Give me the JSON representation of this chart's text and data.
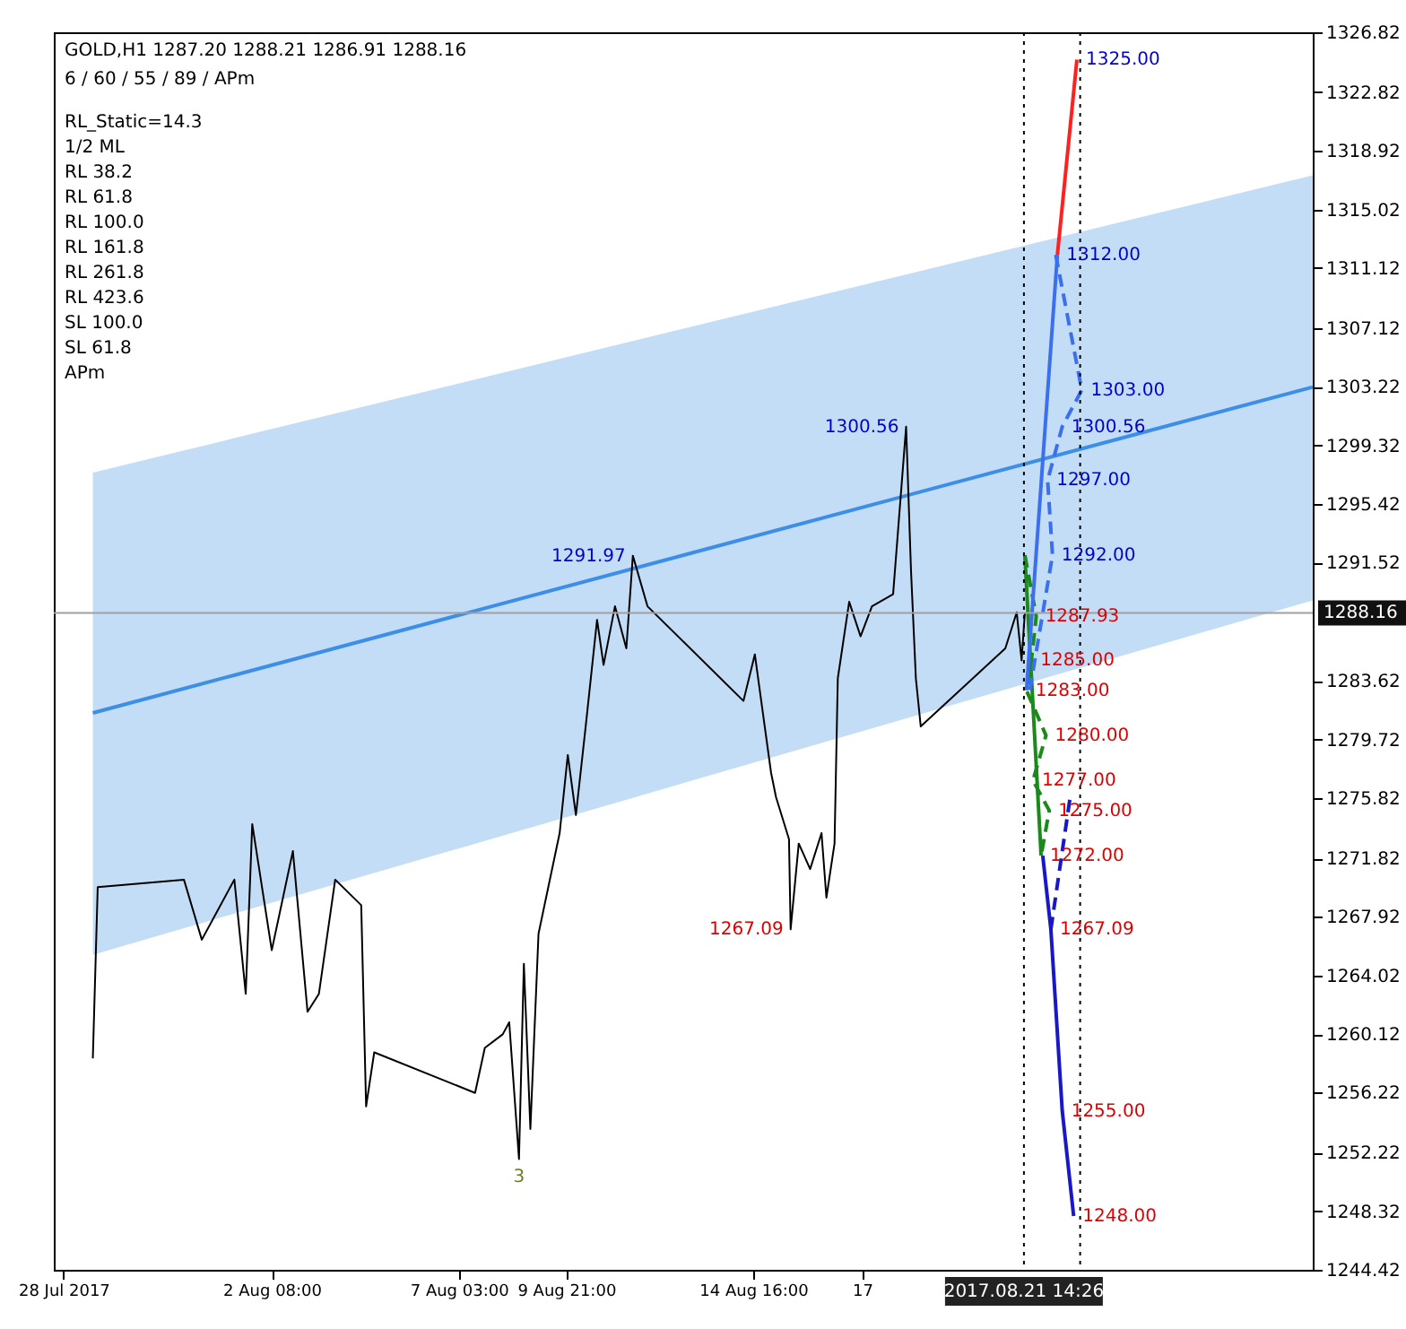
{
  "chart_data": {
    "type": "line",
    "title": "GOLD,H1  1287.20 1288.21 1286.91 1288.16",
    "subtitle": "6 / 60 / 55 / 89 / APm",
    "xlim": [
      "2017-07-27T18:00",
      "2017-08-29"
    ],
    "xticks": [
      {
        "value": "2017-07-28",
        "label": "28 Jul 2017"
      },
      {
        "value": "2017-08-02T08:00",
        "label": "2 Aug 08:00"
      },
      {
        "value": "2017-08-07T03:00",
        "label": "7 Aug 03:00"
      },
      {
        "value": "2017-08-09T21:00",
        "label": "9 Aug 21:00"
      },
      {
        "value": "2017-08-14T16:00",
        "label": "14 Aug 16:00"
      },
      {
        "value": "2017-08-17T11:00",
        "label": "17"
      }
    ],
    "ylim": [
      1244.42,
      1326.82
    ],
    "yticks": [
      1244.42,
      1248.32,
      1252.22,
      1256.22,
      1260.12,
      1264.02,
      1267.92,
      1271.82,
      1275.82,
      1279.72,
      1283.62,
      1291.52,
      1295.42,
      1299.32,
      1303.22,
      1307.12,
      1311.12,
      1315.02,
      1318.92,
      1322.82,
      1326.82
    ],
    "series": [
      {
        "color": "#3c8ee6",
        "x": [
          "2017-07-28T18:00",
          "2017-08-29"
        ],
        "values": [
          1281.5,
          1303.2
        ],
        "lower": [
          1265.4,
          1289.0
        ],
        "upper": [
          1297.5,
          1317.3
        ]
      },
      {
        "color": "#000000",
        "x": [
          "2017-07-28T18:00",
          "2017-07-28T21:00",
          "2017-07-31T02:00",
          "2017-07-31T13:00",
          "2017-08-01T09:00",
          "2017-08-01T16:00",
          "2017-08-01T20:00",
          "2017-08-02T08:00",
          "2017-08-02T21:00",
          "2017-08-03T06:00",
          "2017-08-03T13:00",
          "2017-08-03T23:00",
          "2017-08-04T15:00",
          "2017-08-04T18:00",
          "2017-08-04T23:00",
          "2017-08-07T13:00",
          "2017-08-07T19:00",
          "2017-08-08T06:00",
          "2017-08-08T10:00",
          "2017-08-08T16:00",
          "2017-08-08T19:00",
          "2017-08-08T23:00",
          "2017-08-09T04:00",
          "2017-08-09T17:00",
          "2017-08-09T22:00",
          "2017-08-10T03:00",
          "2017-08-10T09:00",
          "2017-08-10T16:00",
          "2017-08-10T20:00",
          "2017-08-11T03:00",
          "2017-08-11T10:00",
          "2017-08-11T14:00",
          "2017-08-11T23:00",
          "2017-08-14T10:00",
          "2017-08-14T17:00",
          "2017-08-15T03:00",
          "2017-08-15T06:00",
          "2017-08-15T14:00",
          "2017-08-15T15:00",
          "2017-08-15T20:00",
          "2017-08-16T03:00",
          "2017-08-16T10:00",
          "2017-08-16T13:00",
          "2017-08-16T18:00",
          "2017-08-16T20:00",
          "2017-08-17T03:00",
          "2017-08-17T10:00",
          "2017-08-17T17:00",
          "2017-08-18T06:00",
          "2017-08-18T14:00",
          "2017-08-18T17:00",
          "2017-08-18T20:00",
          "2017-08-18T23:00",
          "2017-08-21T03:00",
          "2017-08-21T10:00",
          "2017-08-21T13:00",
          "2017-08-21T15:00"
        ],
        "values": [
          1258.5,
          1269.9,
          1270.4,
          1266.4,
          1270.4,
          1262.8,
          1274.1,
          1265.7,
          1272.3,
          1261.6,
          1262.8,
          1270.4,
          1268.7,
          1255.3,
          1258.9,
          1256.2,
          1259.2,
          1260.1,
          1260.9,
          1251.8,
          1264.8,
          1253.8,
          1266.8,
          1273.5,
          1278.7,
          1274.7,
          1280.6,
          1287.7,
          1284.7,
          1288.6,
          1285.8,
          1291.97,
          1288.6,
          1282.3,
          1285.4,
          1277.5,
          1275.9,
          1273.1,
          1267.09,
          1272.8,
          1271.1,
          1273.5,
          1269.2,
          1272.8,
          1283.8,
          1288.9,
          1286.6,
          1288.6,
          1289.4,
          1300.56,
          1291.0,
          1283.8,
          1280.6,
          1285.8,
          1288.2,
          1285.0,
          1288.16
        ]
      },
      {
        "color": "#1a8a1a",
        "line_style": "solid",
        "x": [
          "2017-08-21T15:00",
          "2017-08-22T01:00"
        ],
        "values": [
          1292,
          1272
        ]
      },
      {
        "color": "#1a8a1a",
        "line_style": "dashed",
        "x": [
          "2017-08-21T15:00",
          "2017-08-21T22:00",
          "2017-08-21T19:00",
          "2017-08-21T16:00",
          "2017-08-22T04:00",
          "2017-08-21T20:00",
          "2017-08-22T06:00",
          "2017-08-22T01:00"
        ],
        "values": [
          1292,
          1287.93,
          1285,
          1283,
          1280,
          1277,
          1275,
          1272
        ]
      },
      {
        "color": "#3a6ff0",
        "line_style": "solid",
        "x": [
          "2017-08-21T16:00",
          "2017-08-22T11:00"
        ],
        "values": [
          1283,
          1312
        ]
      },
      {
        "color": "#ff2020",
        "line_style": "solid",
        "x": [
          "2017-08-22T11:00",
          "2017-08-22T23:00"
        ],
        "values": [
          1312,
          1325
        ]
      },
      {
        "color": "#3a6ff0",
        "line_style": "dashed",
        "x": [
          "2017-08-22T10:00",
          "2017-08-23T02:00",
          "2017-08-22T14:00",
          "2017-08-22T05:00",
          "2017-08-22T08:00",
          "2017-08-21T18:00"
        ],
        "values": [
          1312,
          1303,
          1300.56,
          1297,
          1292,
          1283
        ]
      },
      {
        "color": "#1818c8",
        "line_style": "solid",
        "x": [
          "2017-08-22T02:00",
          "2017-08-22T07:00",
          "2017-08-22T14:00",
          "2017-08-22T21:00"
        ],
        "values": [
          1272,
          1267.09,
          1255,
          1248
        ]
      },
      {
        "color": "#1818c8",
        "line_style": "dashed",
        "x": [
          "2017-08-22T07:00",
          "2017-08-22T19:00"
        ],
        "values": [
          1267.09,
          1276
        ]
      }
    ],
    "ref_lines": [
      {
        "axis": "y",
        "value": 1288.16,
        "label": "1288.16",
        "color": "#a0a0a0",
        "line_style": "solid"
      },
      {
        "axis": "x",
        "value": "2017-08-21T14:26",
        "label": "2017.08.21 14:26",
        "color": "#000000",
        "line_style": "dotted"
      },
      {
        "axis": "x",
        "value": "2017-08-23T01:00",
        "color": "#000000",
        "line_style": "dotted"
      }
    ],
    "annotations": [
      "RL_Static=14.3",
      {
        "text": "1325.00",
        "x": "2017-08-22T23:00",
        "y": 1325
      },
      {
        "text": "1312.00",
        "x": "2017-08-22T11:00",
        "y": 1312
      },
      {
        "text": "1303.00",
        "x": "2017-08-23T02:00",
        "y": 1303
      },
      {
        "text": "1300.56",
        "x": "2017-08-22T14:00",
        "y": 1300.56
      },
      {
        "text": "1297.00",
        "x": "2017-08-22T05:00",
        "y": 1297
      },
      {
        "text": "1292.00",
        "x": "2017-08-22T08:00",
        "y": 1292
      },
      {
        "text": "1287.93",
        "x": "2017-08-21T22:00",
        "y": 1287.93
      },
      {
        "text": "1285.00",
        "x": "2017-08-21T19:00",
        "y": 1285
      },
      {
        "text": "1283.00",
        "x": "2017-08-21T16:00",
        "y": 1283
      },
      {
        "text": "1280.00",
        "x": "2017-08-22T04:00",
        "y": 1280
      },
      {
        "text": "1277.00",
        "x": "2017-08-21T20:00",
        "y": 1277
      },
      {
        "text": "1275.00",
        "x": "2017-08-22T06:00",
        "y": 1275
      },
      {
        "text": "1272.00",
        "x": "2017-08-22T01:00",
        "y": 1272
      },
      {
        "text": "1267.09",
        "x": "2017-08-22T07:00",
        "y": 1267.09
      },
      {
        "text": "1255.00",
        "x": "2017-08-22T14:00",
        "y": 1255
      },
      {
        "text": "1248.00",
        "x": "2017-08-22T21:00",
        "y": 1248
      },
      {
        "text": "1300.56",
        "x": "2017-08-18T14:00",
        "y": 1300.56
      },
      {
        "text": "1291.97",
        "x": "2017-08-11T14:00",
        "y": 1291.97
      },
      {
        "text": "1267.09",
        "x": "2017-08-15T15:00",
        "y": 1267.09
      },
      "1/2 ML",
      "RL 38.2",
      "RL 61.8",
      "RL 100.0",
      "RL 161.8",
      "RL 261.8",
      "RL 423.6",
      "SL 100.0",
      "SL 61.8",
      "APm",
      {
        "text": "3",
        "x": "2017-08-08T16:00",
        "y": 1251.8
      }
    ]
  }
}
